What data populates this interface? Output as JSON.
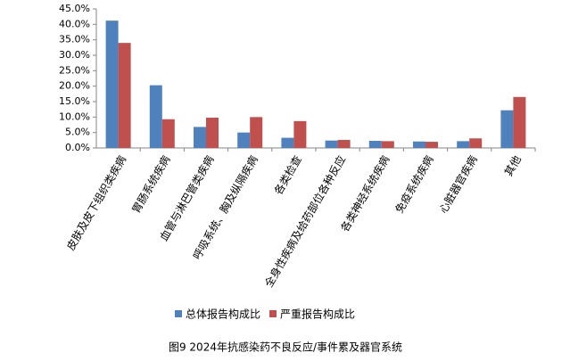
{
  "chart_data": {
    "type": "bar",
    "title": "图9  2024年抗感染药不良反应/事件累及器官系统",
    "categories": [
      "皮肤及皮下组织类疾病",
      "胃肠系统疾病",
      "血管与淋巴管类疾病",
      "呼吸系统、胸及纵隔疾病",
      "各类检查",
      "全身性疾病及给药部位各种反应",
      "各类神经系统疾病",
      "免疫系统疾病",
      "心脏器官疾病",
      "其他"
    ],
    "series": [
      {
        "name": "总体报告构成比",
        "color": "#4f81bd",
        "values": [
          41.2,
          20.3,
          6.8,
          5.0,
          3.3,
          2.4,
          2.3,
          2.1,
          2.2,
          12.2
        ]
      },
      {
        "name": "严重报告构成比",
        "color": "#c0504d",
        "values": [
          34.0,
          9.3,
          9.8,
          10.0,
          8.7,
          2.6,
          2.2,
          2.0,
          3.1,
          16.5
        ]
      }
    ],
    "ylim": [
      0,
      45
    ],
    "yticks": [
      {
        "value": 0,
        "label": "0.0%"
      },
      {
        "value": 5,
        "label": "5.0%"
      },
      {
        "value": 10,
        "label": "10.0%"
      },
      {
        "value": 15,
        "label": "15.0%"
      },
      {
        "value": 20,
        "label": "20.0%"
      },
      {
        "value": 25,
        "label": "25.0%"
      },
      {
        "value": 30,
        "label": "30.0%"
      },
      {
        "value": 35,
        "label": "35.0%"
      },
      {
        "value": 40,
        "label": "40.0%"
      },
      {
        "value": 45,
        "label": "45.0%"
      }
    ],
    "grid": false,
    "legend": "bottom"
  }
}
